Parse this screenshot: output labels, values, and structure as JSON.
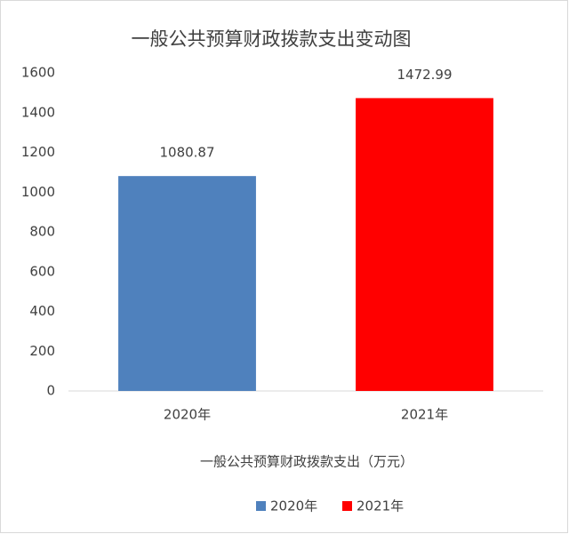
{
  "chart_data": {
    "type": "bar",
    "title": "一般公共预算财政拨款支出变动图",
    "x_label": "一般公共预算财政拨款支出（万元）",
    "categories": [
      "2020年",
      "2021年"
    ],
    "values": [
      1080.87,
      1472.99
    ],
    "colors": [
      "#4f81bd",
      "#ff0000"
    ],
    "ylim": [
      0,
      1600
    ],
    "yticks": [
      0,
      200,
      400,
      600,
      800,
      1000,
      1200,
      1400,
      1600
    ],
    "grid": false,
    "legend": "bottom"
  }
}
